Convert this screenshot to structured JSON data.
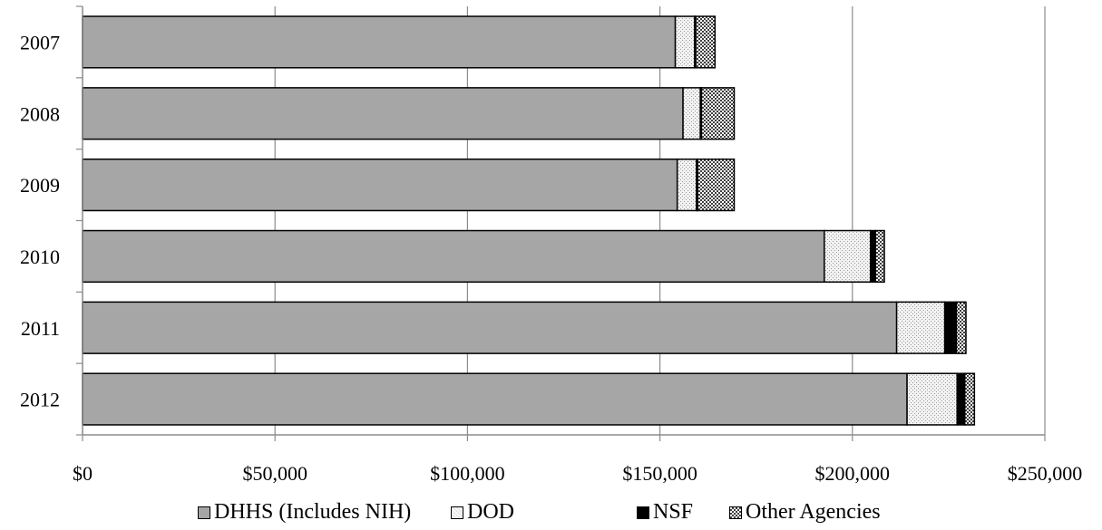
{
  "chart_data": {
    "type": "bar",
    "orientation": "horizontal",
    "stacked": true,
    "categories": [
      "2007",
      "2008",
      "2009",
      "2010",
      "2011",
      "2012"
    ],
    "series": [
      {
        "name": "DHHS (Includes NIH)",
        "values": [
          154000,
          156000,
          154500,
          192700,
          211500,
          214200
        ],
        "color": "#a6a6a6",
        "pattern": "solid"
      },
      {
        "name": "DOD",
        "values": [
          5000,
          4500,
          5000,
          12000,
          12500,
          13000
        ],
        "color": "#e8e8e8",
        "pattern": "light-dots"
      },
      {
        "name": "NSF",
        "values": [
          300,
          300,
          300,
          1300,
          3000,
          2000
        ],
        "color": "#000000",
        "pattern": "solid"
      },
      {
        "name": "Other Agencies",
        "values": [
          5000,
          8500,
          9500,
          2300,
          2500,
          2500
        ],
        "color": "#707070",
        "pattern": "crosshatch"
      }
    ],
    "x_ticks": [
      "$0",
      "$50,000",
      "$100,000",
      "$150,000",
      "$200,000",
      "$250,000"
    ],
    "xlim": [
      0,
      250000
    ],
    "xlabel": "",
    "ylabel": "",
    "title": "",
    "grid": "vertical",
    "legend_position": "bottom"
  }
}
